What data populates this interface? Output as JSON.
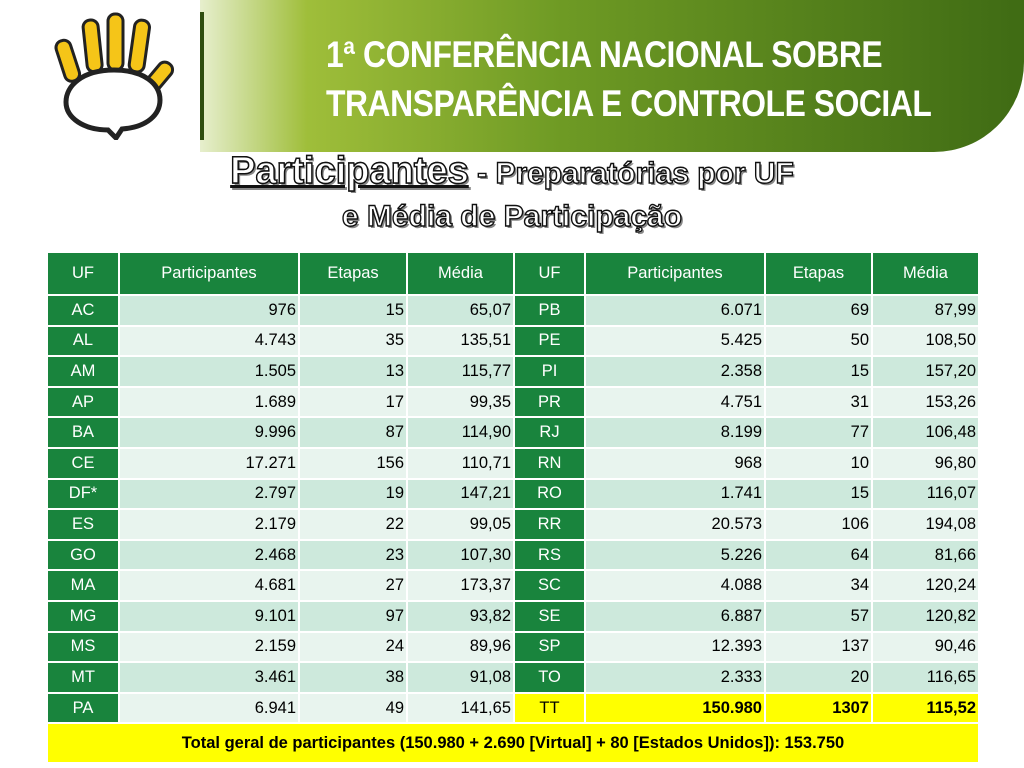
{
  "header": {
    "title_line1": "1ª CONFERÊNCIA NACIONAL SOBRE",
    "title_line2": "TRANSPARÊNCIA E CONTROLE SOCIAL"
  },
  "slide": {
    "heading_main": "Participantes",
    "heading_sub": " - Preparatórias por UF",
    "heading_line2": "e Média de Participação"
  },
  "table": {
    "columns": [
      "UF",
      "Participantes",
      "Etapas",
      "Média",
      "UF",
      "Participantes",
      "Etapas",
      "Média"
    ],
    "left_rows": [
      [
        "AC",
        "976",
        "15",
        "65,07"
      ],
      [
        "AL",
        "4.743",
        "35",
        "135,51"
      ],
      [
        "AM",
        "1.505",
        "13",
        "115,77"
      ],
      [
        "AP",
        "1.689",
        "17",
        "99,35"
      ],
      [
        "BA",
        "9.996",
        "87",
        "114,90"
      ],
      [
        "CE",
        "17.271",
        "156",
        "110,71"
      ],
      [
        "DF*",
        "2.797",
        "19",
        "147,21"
      ],
      [
        "ES",
        "2.179",
        "22",
        "99,05"
      ],
      [
        "GO",
        "2.468",
        "23",
        "107,30"
      ],
      [
        "MA",
        "4.681",
        "27",
        "173,37"
      ],
      [
        "MG",
        "9.101",
        "97",
        "93,82"
      ],
      [
        "MS",
        "2.159",
        "24",
        "89,96"
      ],
      [
        "MT",
        "3.461",
        "38",
        "91,08"
      ],
      [
        "PA",
        "6.941",
        "49",
        "141,65"
      ]
    ],
    "right_rows": [
      [
        "PB",
        "6.071",
        "69",
        "87,99"
      ],
      [
        "PE",
        "5.425",
        "50",
        "108,50"
      ],
      [
        "PI",
        "2.358",
        "15",
        "157,20"
      ],
      [
        "PR",
        "4.751",
        "31",
        "153,26"
      ],
      [
        "RJ",
        "8.199",
        "77",
        "106,48"
      ],
      [
        "RN",
        "968",
        "10",
        "96,80"
      ],
      [
        "RO",
        "1.741",
        "15",
        "116,07"
      ],
      [
        "RR",
        "20.573",
        "106",
        "194,08"
      ],
      [
        "RS",
        "5.226",
        "64",
        "81,66"
      ],
      [
        "SC",
        "4.088",
        "34",
        "120,24"
      ],
      [
        "SE",
        "6.887",
        "57",
        "120,82"
      ],
      [
        "SP",
        "12.393",
        "137",
        "90,46"
      ],
      [
        "TO",
        "2.333",
        "20",
        "116,65"
      ],
      [
        "TT",
        "150.980",
        "1307",
        "115,52"
      ]
    ],
    "grand_total": "Total geral de participantes (150.980 + 2.690 [Virtual] + 80 [Estados Unidos]): 153.750"
  },
  "colors": {
    "header_green": "#19843d",
    "row_light": "#e8f4ee",
    "row_mid": "#cde9dc",
    "total_yellow": "#ffff00"
  },
  "icons": [
    "hand-speech-bubble-logo-icon"
  ]
}
